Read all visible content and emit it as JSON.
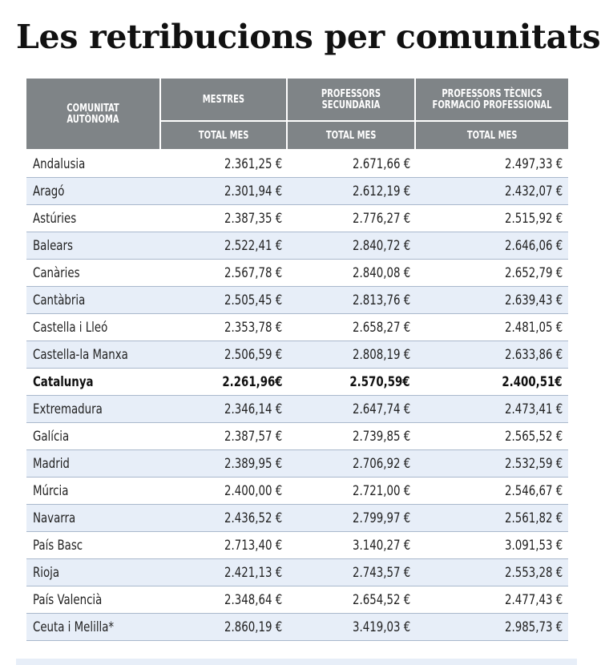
{
  "title": "Les retribucions per comunitats",
  "header": {
    "col_region": "COMUNITAT AUTÒNOMA",
    "col_mestres": "MESTRES",
    "col_secundaria": "PROFESSORS SECUNDÀRIA",
    "col_fp": "PROFESSORS TÈCNICS FORMACIÓ PROFESSIONAL",
    "sub_mestres": "TOTAL MES",
    "sub_secundaria": "TOTAL MES",
    "sub_fp": "TOTAL MES"
  },
  "rows": [
    {
      "name": "Andalusia",
      "mestres": "2.361,25 €",
      "secundaria": "2.671,66 €",
      "fp": "2.497,33 €"
    },
    {
      "name": "Aragó",
      "mestres": "2.301,94 €",
      "secundaria": "2.612,19 €",
      "fp": "2.432,07 €"
    },
    {
      "name": "Astúries",
      "mestres": "2.387,35 €",
      "secundaria": "2.776,27 €",
      "fp": "2.515,92 €"
    },
    {
      "name": "Balears",
      "mestres": "2.522,41 €",
      "secundaria": "2.840,72 €",
      "fp": "2.646,06 €"
    },
    {
      "name": "Canàries",
      "mestres": "2.567,78 €",
      "secundaria": "2.840,08 €",
      "fp": "2.652,79 €"
    },
    {
      "name": "Cantàbria",
      "mestres": "2.505,45 €",
      "secundaria": "2.813,76 €",
      "fp": "2.639,43 €"
    },
    {
      "name": "Castella i Lleó",
      "mestres": "2.353,78 €",
      "secundaria": "2.658,27 €",
      "fp": "2.481,05 €"
    },
    {
      "name": "Castella-la Manxa",
      "mestres": "2.506,59 €",
      "secundaria": "2.808,19 €",
      "fp": "2.633,86 €"
    },
    {
      "name": "Catalunya",
      "mestres": "2.261,96€",
      "secundaria": "2.570,59€",
      "fp": "2.400,51€"
    },
    {
      "name": "Extremadura",
      "mestres": "2.346,14 €",
      "secundaria": "2.647,74 €",
      "fp": "2.473,41 €"
    },
    {
      "name": "Galícia",
      "mestres": "2.387,57 €",
      "secundaria": "2.739,85 €",
      "fp": "2.565,52 €"
    },
    {
      "name": "Madrid",
      "mestres": "2.389,95 €",
      "secundaria": "2.706,92 €",
      "fp": "2.532,59 €"
    },
    {
      "name": "Múrcia",
      "mestres": "2.400,00 €",
      "secundaria": "2.721,00 €",
      "fp": "2.546,67 €"
    },
    {
      "name": "Navarra",
      "mestres": "2.436,52 €",
      "secundaria": "2.799,97 €",
      "fp": "2.561,82 €"
    },
    {
      "name": "País Basc",
      "mestres": "2.713,40 €",
      "secundaria": "3.140,27 €",
      "fp": "3.091,53 €"
    },
    {
      "name": "Rioja",
      "mestres": "2.421,13 €",
      "secundaria": "2.743,57 €",
      "fp": "2.553,28 €"
    },
    {
      "name": "País Valencià",
      "mestres": "2.348,64 €",
      "secundaria": "2.654,52 €",
      "fp": "2.477,43 €"
    },
    {
      "name": "Ceuta i Melilla*",
      "mestres": "2.860,19 €",
      "secundaria": "3.419,03 €",
      "fp": "2.985,73 €"
    }
  ],
  "colors": {
    "header_bg": "#7f8487",
    "stripe_bg": "#e7eef8",
    "row_border": "#a9b8cc"
  }
}
